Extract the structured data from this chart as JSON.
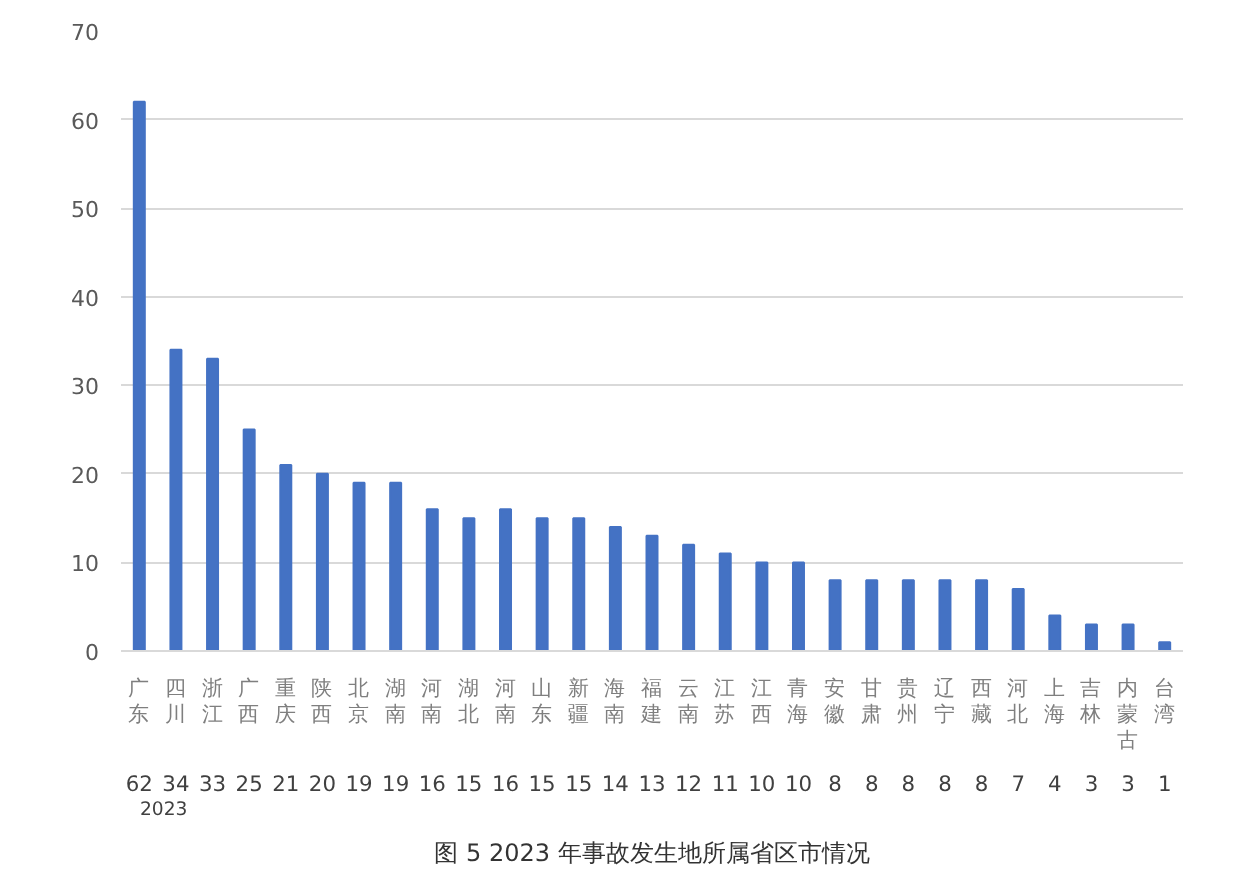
{
  "chart_data": {
    "type": "bar",
    "title": "图 5 2023 年事故发生地所属省区市情况",
    "categories": [
      "广东",
      "四川",
      "浙江",
      "广西",
      "重庆",
      "陕西",
      "北京",
      "湖南",
      "河南",
      "湖北",
      "河南",
      "山东",
      "新疆",
      "海南",
      "福建",
      "云南",
      "江苏",
      "江西",
      "青海",
      "安徽",
      "甘肃",
      "贵州",
      "辽宁",
      "西藏",
      "河北",
      "上海",
      "吉林",
      "内蒙古",
      "台湾"
    ],
    "series": [
      {
        "name": "2023",
        "color": "#4472c4",
        "values": [
          62,
          34,
          33,
          25,
          21,
          20,
          19,
          19,
          16,
          15,
          16,
          15,
          15,
          14,
          13,
          12,
          11,
          10,
          10,
          8,
          8,
          8,
          8,
          8,
          7,
          4,
          3,
          3,
          1
        ]
      }
    ],
    "ylim": [
      0,
      70
    ],
    "yticks": [
      0,
      10,
      20,
      30,
      40,
      50,
      60,
      70
    ],
    "grid": "y",
    "legend": "bottom",
    "data_labels": true
  }
}
